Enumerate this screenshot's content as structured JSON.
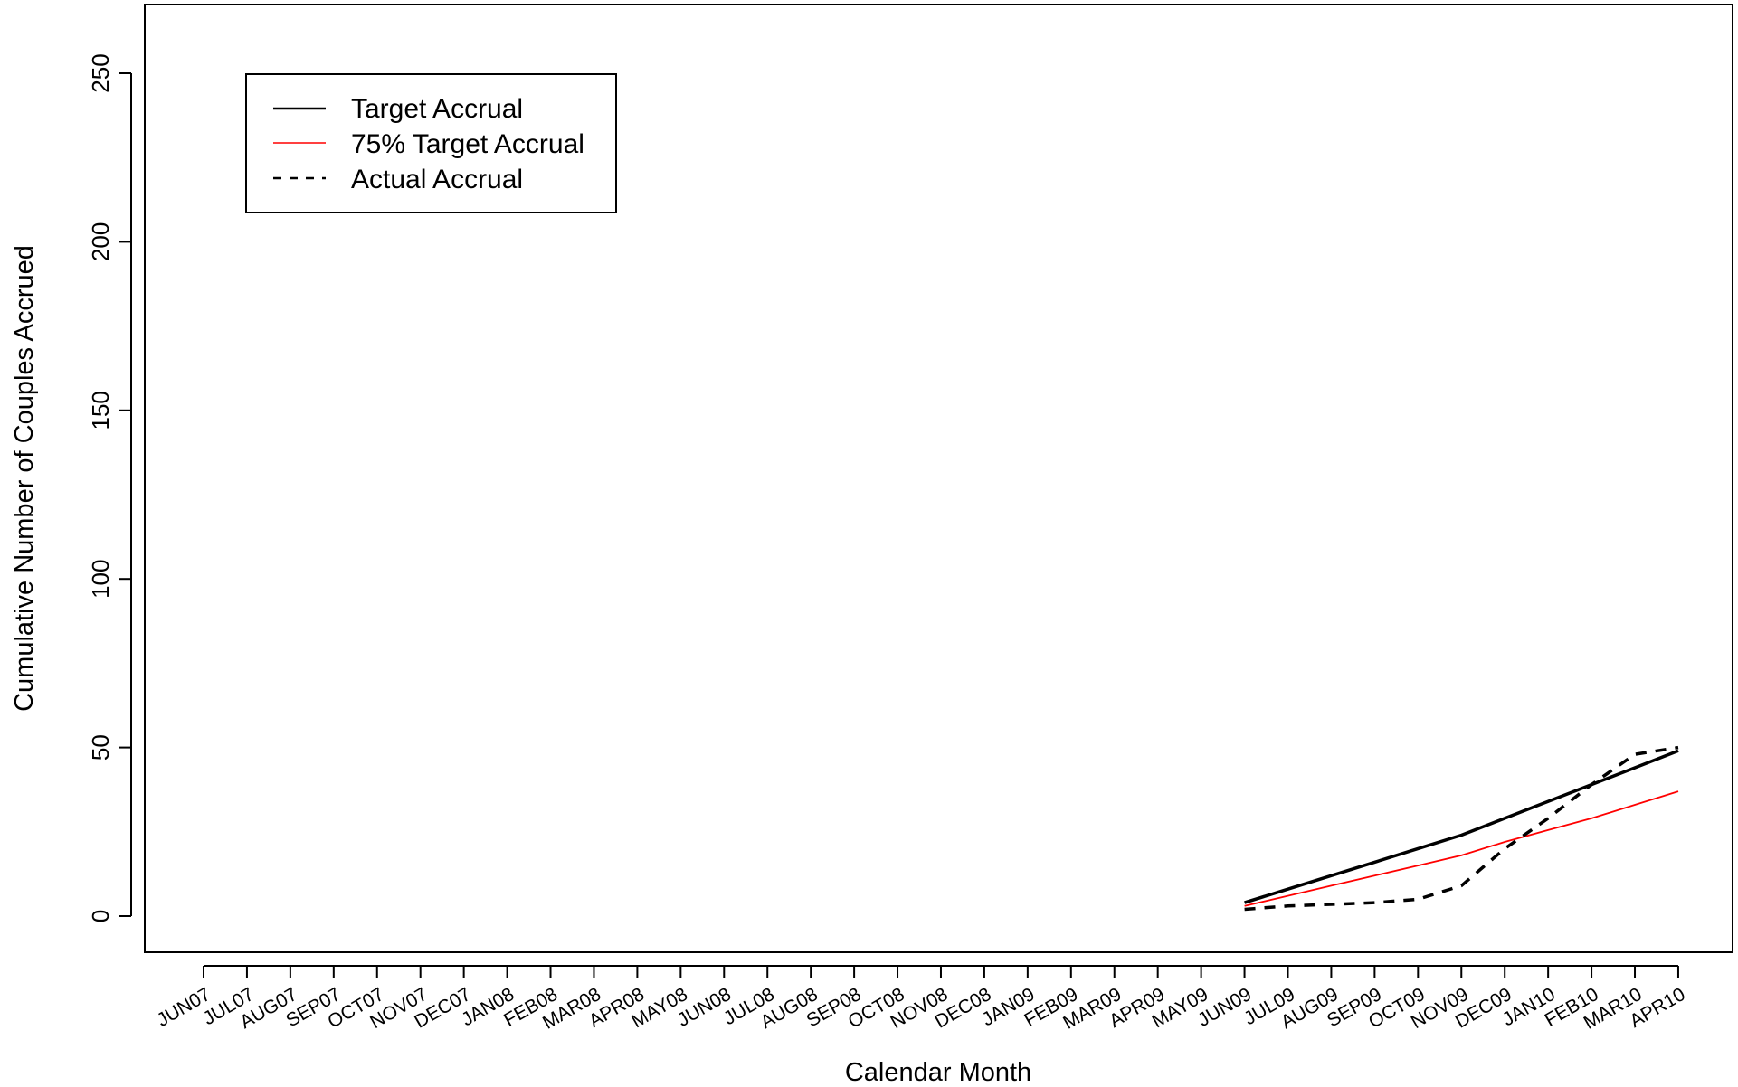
{
  "chart_data": {
    "type": "line",
    "title": "",
    "xlabel": "Calendar Month",
    "ylabel": "Cumulative Number of Couples Accrued",
    "categories": [
      "JUN07",
      "JUL07",
      "AUG07",
      "SEP07",
      "OCT07",
      "NOV07",
      "DEC07",
      "JAN08",
      "FEB08",
      "MAR08",
      "APR08",
      "MAY08",
      "JUN08",
      "JUL08",
      "AUG08",
      "SEP08",
      "OCT08",
      "NOV08",
      "DEC08",
      "JAN09",
      "FEB09",
      "MAR09",
      "APR09",
      "MAY09",
      "JUN09",
      "JUL09",
      "AUG09",
      "SEP09",
      "OCT09",
      "NOV09",
      "DEC09",
      "JAN10",
      "FEB10",
      "MAR10",
      "APR10"
    ],
    "yticks": [
      0,
      50,
      100,
      150,
      200,
      250
    ],
    "ylim": [
      -10,
      270
    ],
    "grid": false,
    "legend_position": "top-left",
    "series": [
      {
        "name": "Target Accrual",
        "color": "#000000",
        "style": "solid-thick",
        "x": [
          "JUN09",
          "JUL09",
          "AUG09",
          "SEP09",
          "OCT09",
          "NOV09",
          "DEC09",
          "JAN10",
          "FEB10",
          "MAR10",
          "APR10"
        ],
        "values": [
          4,
          8,
          12,
          16,
          20,
          24,
          29,
          34,
          39,
          44,
          49
        ]
      },
      {
        "name": "75% Target Accrual",
        "color": "#ff0000",
        "style": "solid-thin",
        "x": [
          "JUN09",
          "JUL09",
          "AUG09",
          "SEP09",
          "OCT09",
          "NOV09",
          "DEC09",
          "JAN10",
          "FEB10",
          "MAR10",
          "APR10"
        ],
        "values": [
          3,
          6,
          9,
          12,
          15,
          18,
          22,
          25.5,
          29,
          33,
          37
        ]
      },
      {
        "name": "Actual Accrual",
        "color": "#000000",
        "style": "dashed",
        "x": [
          "JUN09",
          "JUL09",
          "AUG09",
          "SEP09",
          "OCT09",
          "NOV09",
          "DEC09",
          "JAN10",
          "FEB10",
          "MAR10",
          "APR10"
        ],
        "values": [
          2,
          3,
          3.5,
          4,
          5,
          9,
          20,
          29,
          39,
          48,
          50
        ]
      }
    ]
  }
}
